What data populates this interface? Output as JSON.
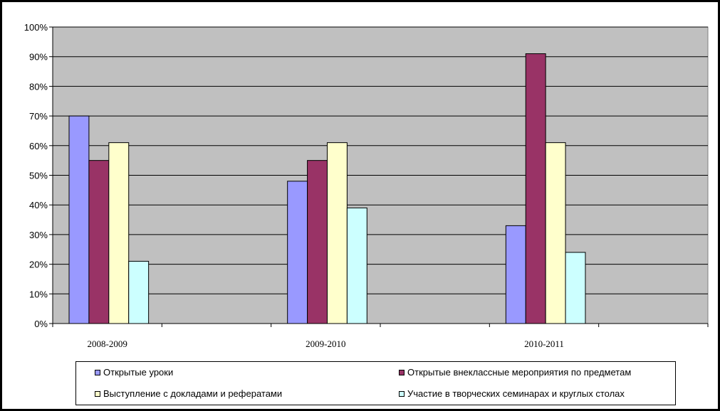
{
  "chart_data": {
    "type": "bar",
    "title": "",
    "xlabel": "",
    "ylabel": "",
    "categories": [
      "2008-2009",
      "2009-2010",
      "2010-2011"
    ],
    "ylim": [
      0,
      100
    ],
    "yticks": [
      "0%",
      "10%",
      "20%",
      "30%",
      "40%",
      "50%",
      "60%",
      "70%",
      "80%",
      "90%",
      "100%"
    ],
    "grid": true,
    "legend_position": "bottom",
    "plot_background": "#C0C0C0",
    "series": [
      {
        "name": "Открытые уроки",
        "color": "#9999FF",
        "values": [
          70,
          48,
          33
        ]
      },
      {
        "name": "Открытые внеклассные мероприятия  по предметам",
        "color": "#993366",
        "values": [
          55,
          55,
          91
        ]
      },
      {
        "name": "Выступление с докладами и рефератами",
        "color": "#FFFFCC",
        "values": [
          61,
          61,
          61
        ]
      },
      {
        "name": "Участие в творческих семинарах  и круглых столах",
        "color": "#CCFFFF",
        "values": [
          21,
          39,
          24
        ]
      }
    ]
  }
}
